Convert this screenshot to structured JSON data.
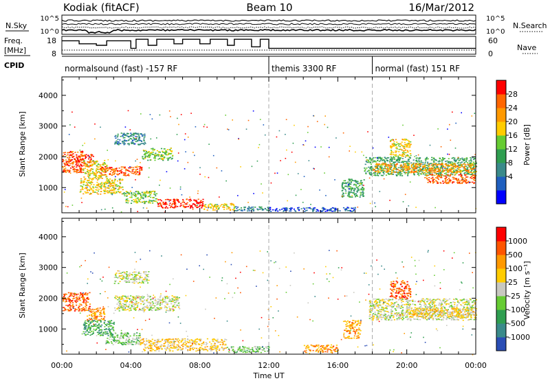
{
  "header": {
    "station": "Kodiak (fitACF)",
    "beam": "Beam 10",
    "date": "16/Mar/2012"
  },
  "summary_panels": {
    "nsky_label": "N.Sky",
    "nsky_ticks": [
      "10^5",
      "10^0"
    ],
    "nsearch_label": "N.Search",
    "nsearch_ticks": [
      "10^5",
      "10^0"
    ],
    "freq_label_1": "Freq.",
    "freq_label_2": "[MHz]",
    "freq_ticks": [
      "18",
      "8"
    ],
    "nave_label": "Nave",
    "nave_ticks": [
      "60",
      "0"
    ],
    "cpid_label": "CPID",
    "cpid_segments": [
      {
        "label": "normalsound (fast) -157 RF",
        "start_hour": 0
      },
      {
        "label": "themis 3300 RF",
        "start_hour": 12
      },
      {
        "label": "normal (fast) 151 RF",
        "start_hour": 18
      }
    ],
    "freq_series": [
      [
        0,
        16
      ],
      [
        1,
        16
      ],
      [
        1,
        14
      ],
      [
        2,
        14
      ],
      [
        2,
        13
      ],
      [
        2.6,
        13
      ],
      [
        2.6,
        16
      ],
      [
        4,
        16
      ],
      [
        4,
        11
      ],
      [
        4.3,
        11
      ],
      [
        4.3,
        17
      ],
      [
        5,
        17
      ],
      [
        5,
        13
      ],
      [
        5.5,
        13
      ],
      [
        5.5,
        17
      ],
      [
        6.5,
        17
      ],
      [
        6.5,
        14
      ],
      [
        7,
        14
      ],
      [
        7,
        17
      ],
      [
        8,
        17
      ],
      [
        8,
        14
      ],
      [
        8.6,
        14
      ],
      [
        8.6,
        17
      ],
      [
        9.6,
        17
      ],
      [
        9.6,
        13
      ],
      [
        10,
        13
      ],
      [
        10,
        17
      ],
      [
        11,
        17
      ],
      [
        11,
        12
      ],
      [
        11.5,
        12
      ],
      [
        11.5,
        17
      ],
      [
        12,
        17
      ],
      [
        12,
        11
      ],
      [
        24,
        11
      ]
    ]
  },
  "power_colorbar": {
    "title": "Power [dB]",
    "ticks": [
      "28",
      "24",
      "20",
      "16",
      "12",
      "8",
      "4"
    ],
    "colors": [
      "#0000ff",
      "#1f5fbf",
      "#3a8a8a",
      "#2f9e50",
      "#66cc33",
      "#ffcc00",
      "#ff9900",
      "#ff6600",
      "#ff0000"
    ]
  },
  "velocity_colorbar": {
    "title": "Velocity [m s⁻¹]",
    "ticks": [
      "1000",
      "500",
      "100",
      "25",
      "-25",
      "-100",
      "-500",
      "-1000"
    ],
    "colors": [
      "#2a4db5",
      "#3a8a8a",
      "#2f9e50",
      "#66cc33",
      "#c8c8c0",
      "#ffcc00",
      "#ff9900",
      "#ff5500",
      "#ff0000"
    ]
  },
  "chart_data": [
    {
      "type": "heatmap",
      "quantity": "Power",
      "xlabel": "",
      "ylabel": "Slant Range [km]",
      "xlim_hours": [
        0,
        24
      ],
      "ylim": [
        180,
        4600
      ],
      "y_ticks": [
        1000,
        2000,
        3000,
        4000
      ],
      "x_tick_hours": [
        0,
        4,
        8,
        12,
        16,
        20,
        24
      ],
      "vertical_dashed_hours": [
        12,
        18
      ],
      "regions": [
        {
          "t0": 0.0,
          "t1": 1.2,
          "r0": 1500,
          "r1": 2200,
          "c": 7
        },
        {
          "t0": 0.8,
          "t1": 1.8,
          "r0": 1700,
          "r1": 2100,
          "c": 8
        },
        {
          "t0": 1.2,
          "t1": 2.6,
          "r0": 1300,
          "r1": 1900,
          "c": 5
        },
        {
          "t0": 2.2,
          "t1": 4.6,
          "r0": 1400,
          "r1": 1700,
          "c": 7
        },
        {
          "t0": 4.6,
          "t1": 6.4,
          "r0": 1900,
          "r1": 2300,
          "c": 4
        },
        {
          "t0": 3.0,
          "t1": 4.8,
          "r0": 2400,
          "r1": 2800,
          "c": 2
        },
        {
          "t0": 1.0,
          "t1": 3.5,
          "r0": 800,
          "r1": 1300,
          "c": 5
        },
        {
          "t0": 3.5,
          "t1": 5.5,
          "r0": 500,
          "r1": 900,
          "c": 4
        },
        {
          "t0": 5.5,
          "t1": 8.2,
          "r0": 350,
          "r1": 650,
          "c": 8
        },
        {
          "t0": 8.2,
          "t1": 10.0,
          "r0": 280,
          "r1": 500,
          "c": 5
        },
        {
          "t0": 10.0,
          "t1": 12.0,
          "r0": 250,
          "r1": 400,
          "c": 2
        },
        {
          "t0": 12.0,
          "t1": 17.0,
          "r0": 240,
          "r1": 380,
          "c": 1
        },
        {
          "t0": 16.2,
          "t1": 17.5,
          "r0": 700,
          "r1": 1300,
          "c": 3
        },
        {
          "t0": 17.5,
          "t1": 24.0,
          "r0": 1400,
          "r1": 2000,
          "c": 3
        },
        {
          "t0": 18.0,
          "t1": 24.0,
          "r0": 1500,
          "r1": 1800,
          "c": 6
        },
        {
          "t0": 21.0,
          "t1": 24.0,
          "r0": 1150,
          "r1": 1450,
          "c": 7
        },
        {
          "t0": 19.0,
          "t1": 20.2,
          "r0": 2000,
          "r1": 2600,
          "c": 5
        }
      ]
    },
    {
      "type": "heatmap",
      "quantity": "Velocity",
      "xlabel": "Time UT",
      "ylabel": "Slant Range [km]",
      "xlim_hours": [
        0,
        24
      ],
      "ylim": [
        180,
        4600
      ],
      "y_ticks": [
        1000,
        2000,
        3000,
        4000
      ],
      "x_tick_labels": [
        "00:00",
        "04:00",
        "08:00",
        "12:00",
        "16:00",
        "20:00",
        "00:00"
      ],
      "x_tick_hours": [
        0,
        4,
        8,
        12,
        16,
        20,
        24
      ],
      "vertical_dashed_hours": [
        12,
        18
      ],
      "regions": [
        {
          "t0": 0.0,
          "t1": 1.6,
          "r0": 1600,
          "r1": 2200,
          "c": 7
        },
        {
          "t0": 1.4,
          "t1": 2.5,
          "r0": 1300,
          "r1": 1700,
          "c": 6
        },
        {
          "t0": 1.2,
          "t1": 3.0,
          "r0": 800,
          "r1": 1300,
          "c": 2
        },
        {
          "t0": 3.0,
          "t1": 6.8,
          "r0": 1600,
          "r1": 2100,
          "c": 4
        },
        {
          "t0": 3.0,
          "t1": 5.0,
          "r0": 2500,
          "r1": 2900,
          "c": 4
        },
        {
          "t0": 2.5,
          "t1": 4.5,
          "r0": 500,
          "r1": 900,
          "c": 3
        },
        {
          "t0": 4.5,
          "t1": 9.5,
          "r0": 300,
          "r1": 700,
          "c": 5
        },
        {
          "t0": 9.5,
          "t1": 12.0,
          "r0": 250,
          "r1": 450,
          "c": 3
        },
        {
          "t0": 14.0,
          "t1": 16.0,
          "r0": 250,
          "r1": 500,
          "c": 6
        },
        {
          "t0": 16.3,
          "t1": 17.3,
          "r0": 700,
          "r1": 1300,
          "c": 6
        },
        {
          "t0": 17.8,
          "t1": 24.0,
          "r0": 1300,
          "r1": 2000,
          "c": 4
        },
        {
          "t0": 19.0,
          "t1": 20.2,
          "r0": 2000,
          "r1": 2600,
          "c": 7
        },
        {
          "t0": 20.0,
          "t1": 24.0,
          "r0": 1400,
          "r1": 1700,
          "c": 5
        }
      ]
    }
  ]
}
